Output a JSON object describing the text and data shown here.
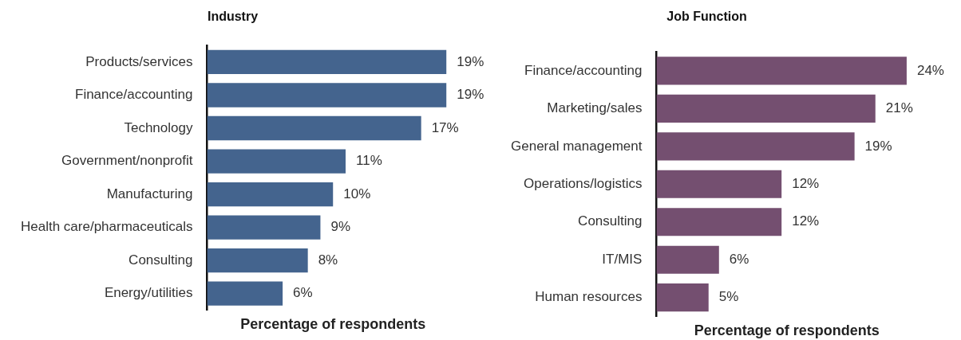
{
  "chart_data": [
    {
      "type": "bar",
      "orientation": "horizontal",
      "title": "Industry",
      "xlabel": "Percentage of respondents",
      "tick_labels": "y",
      "grid": false,
      "legend": false,
      "categories": [
        "Products/services",
        "Finance/accounting",
        "Technology",
        "Government/nonprofit",
        "Manufacturing",
        "Health care/pharmaceuticals",
        "Consulting",
        "Energy/utilities"
      ],
      "series": [
        {
          "color": "#44648e",
          "values": [
            19,
            19,
            17,
            11,
            10,
            9,
            8,
            6
          ],
          "value_labels": [
            "19%",
            "19%",
            "17%",
            "11%",
            "10%",
            "9%",
            "8%",
            "6%"
          ]
        }
      ]
    },
    {
      "type": "bar",
      "orientation": "horizontal",
      "title": "Job Function",
      "xlabel": "Percentage of respondents",
      "tick_labels": "y",
      "grid": false,
      "legend": false,
      "categories": [
        "Finance/accounting",
        "Marketing/sales",
        "General management",
        "Operations/logistics",
        "Consulting",
        "IT/MIS",
        "Human resources"
      ],
      "series": [
        {
          "color": "#744f70",
          "values": [
            24,
            21,
            19,
            12,
            12,
            6,
            5
          ],
          "value_labels": [
            "24%",
            "21%",
            "19%",
            "12%",
            "12%",
            "6%",
            "5%"
          ]
        }
      ]
    }
  ]
}
